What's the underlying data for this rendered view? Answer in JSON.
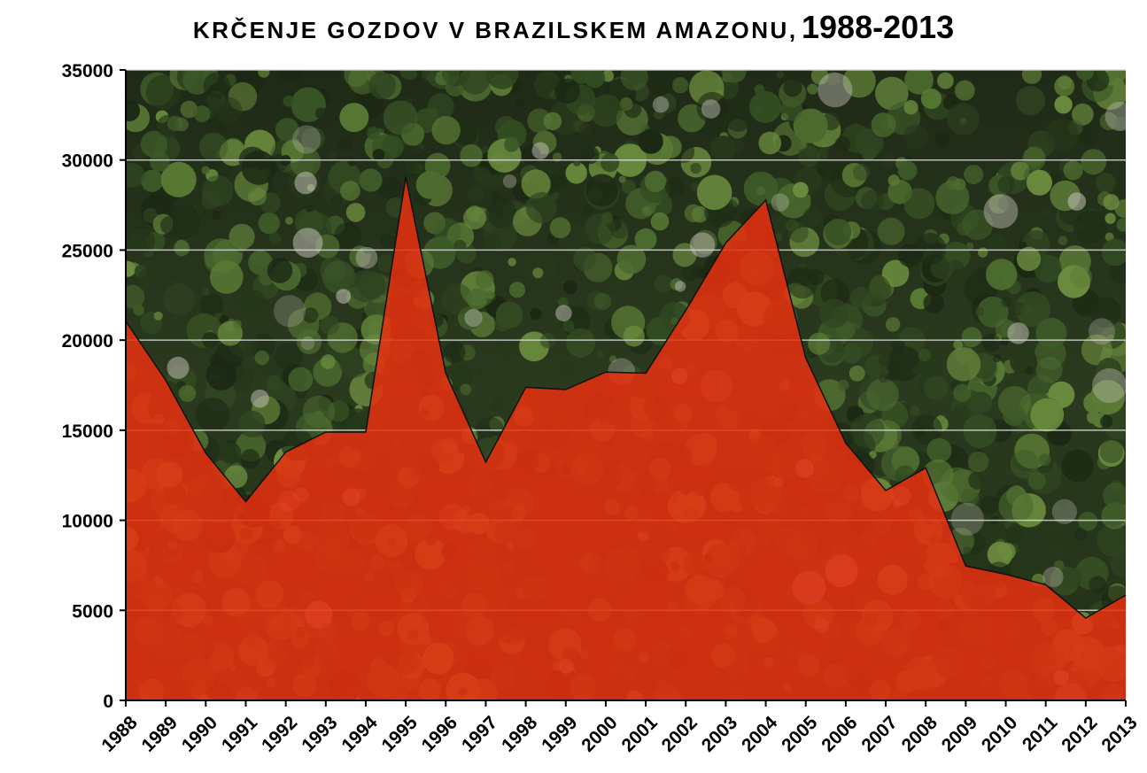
{
  "title": {
    "main": "KRČENJE GOZDOV V BRAZILSKEM AMAZONU,",
    "years": "1988-2013"
  },
  "chart_data": {
    "type": "area",
    "title": "KRČENJE GOZDOV V BRAZILSKEM AMAZONU, 1988-2013",
    "xlabel": "",
    "ylabel": "",
    "x": [
      "1988",
      "1989",
      "1990",
      "1991",
      "1992",
      "1993",
      "1994",
      "1995",
      "1996",
      "1997",
      "1998",
      "1999",
      "2000",
      "2001",
      "2002",
      "2003",
      "2004",
      "2005",
      "2006",
      "2007",
      "2008",
      "2009",
      "2010",
      "2011",
      "2012",
      "2013"
    ],
    "series": [
      {
        "values": [
          21050,
          17770,
          13730,
          11030,
          13786,
          14896,
          14896,
          29059,
          18161,
          13227,
          17383,
          17259,
          18226,
          18165,
          21651,
          25396,
          27772,
          19014,
          14286,
          11651,
          12911,
          7464,
          7000,
          6418,
          4571,
          5843
        ]
      }
    ],
    "ylim": [
      0,
      35000
    ],
    "yticks": [
      0,
      5000,
      10000,
      15000,
      20000,
      25000,
      30000,
      35000
    ],
    "grid": true,
    "legend": "none",
    "area_color": "#e8300f",
    "background": "aerial photo of rainforest canopy"
  }
}
